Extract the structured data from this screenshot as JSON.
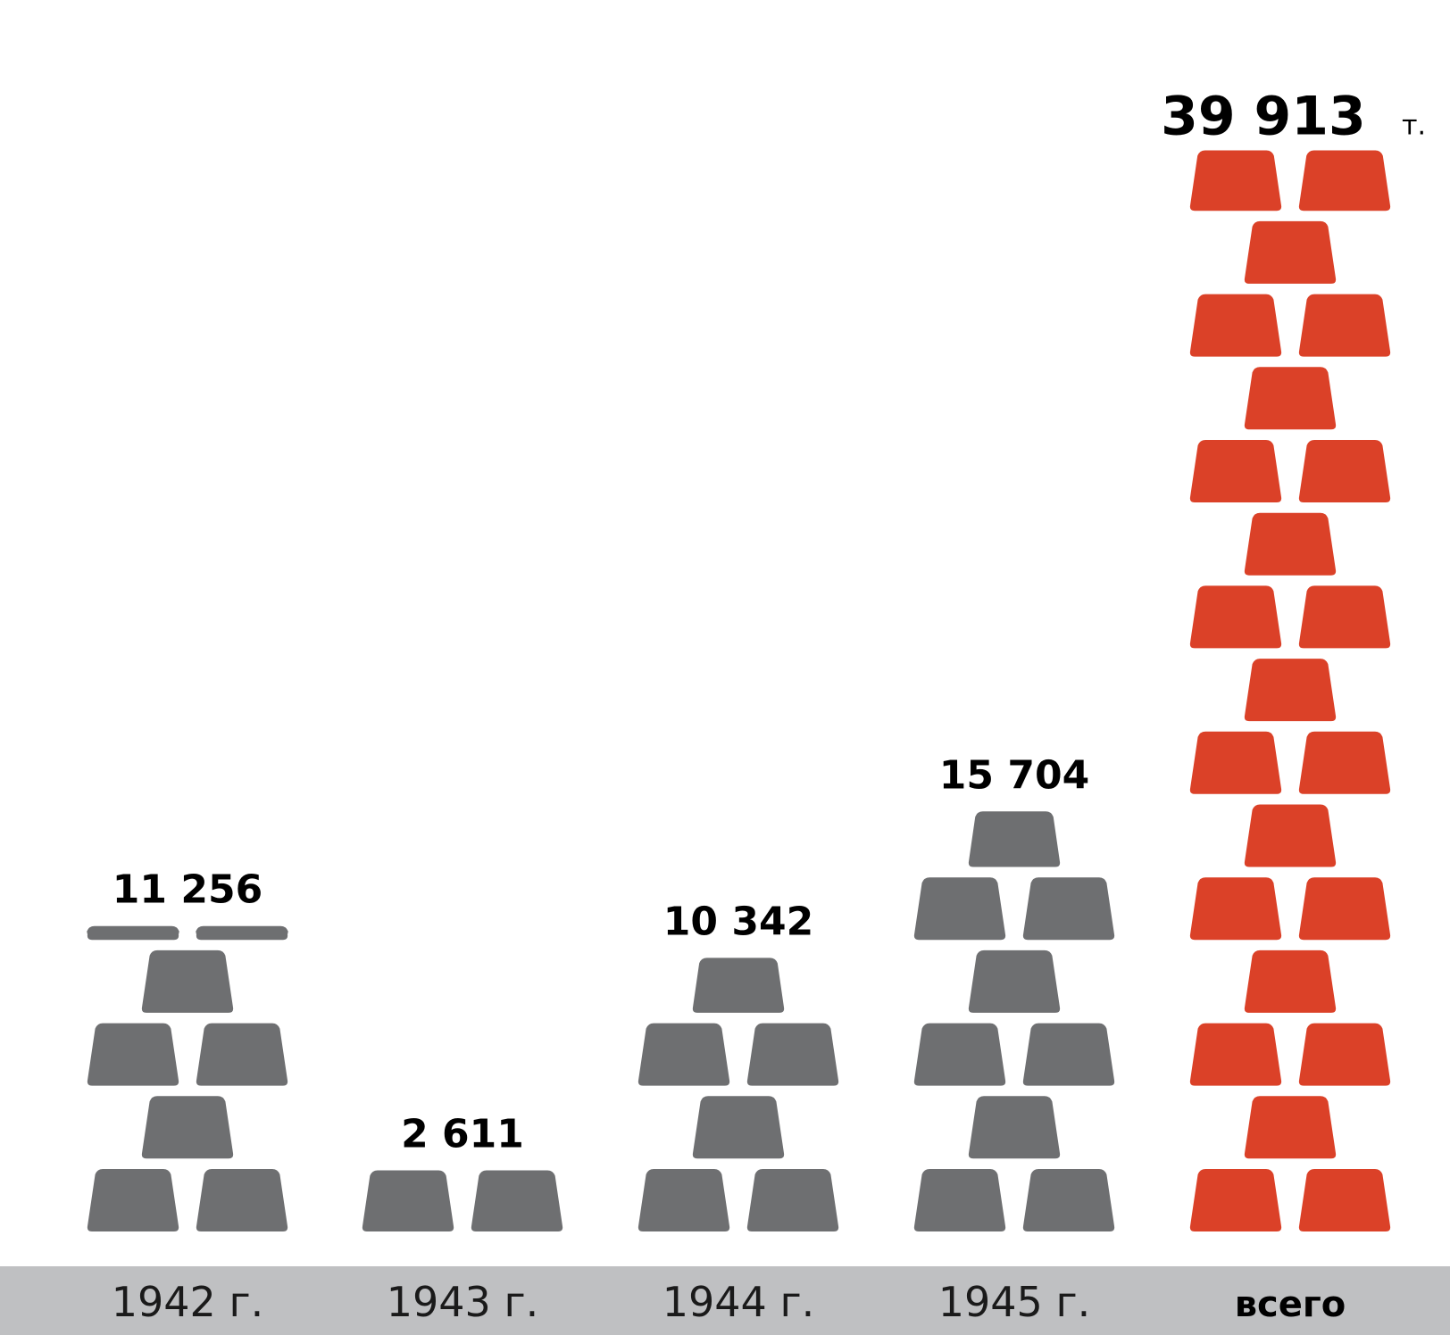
{
  "chart_data": {
    "type": "bar",
    "categories": [
      "1942 г.",
      "1943 г.",
      "1944 г.",
      "1945 г.",
      "всего"
    ],
    "values": [
      11256,
      2611,
      10342,
      15704,
      39913
    ],
    "value_labels": [
      "11 256",
      "2 611",
      "10 342",
      "15 704",
      "39 913"
    ],
    "unit": "т.",
    "colors": {
      "years": "#6e6f71",
      "total": "#db4128",
      "base_band": "#bfc0c2"
    },
    "pictogram": "gold-bar-icon",
    "grid": false,
    "legend": "none"
  }
}
